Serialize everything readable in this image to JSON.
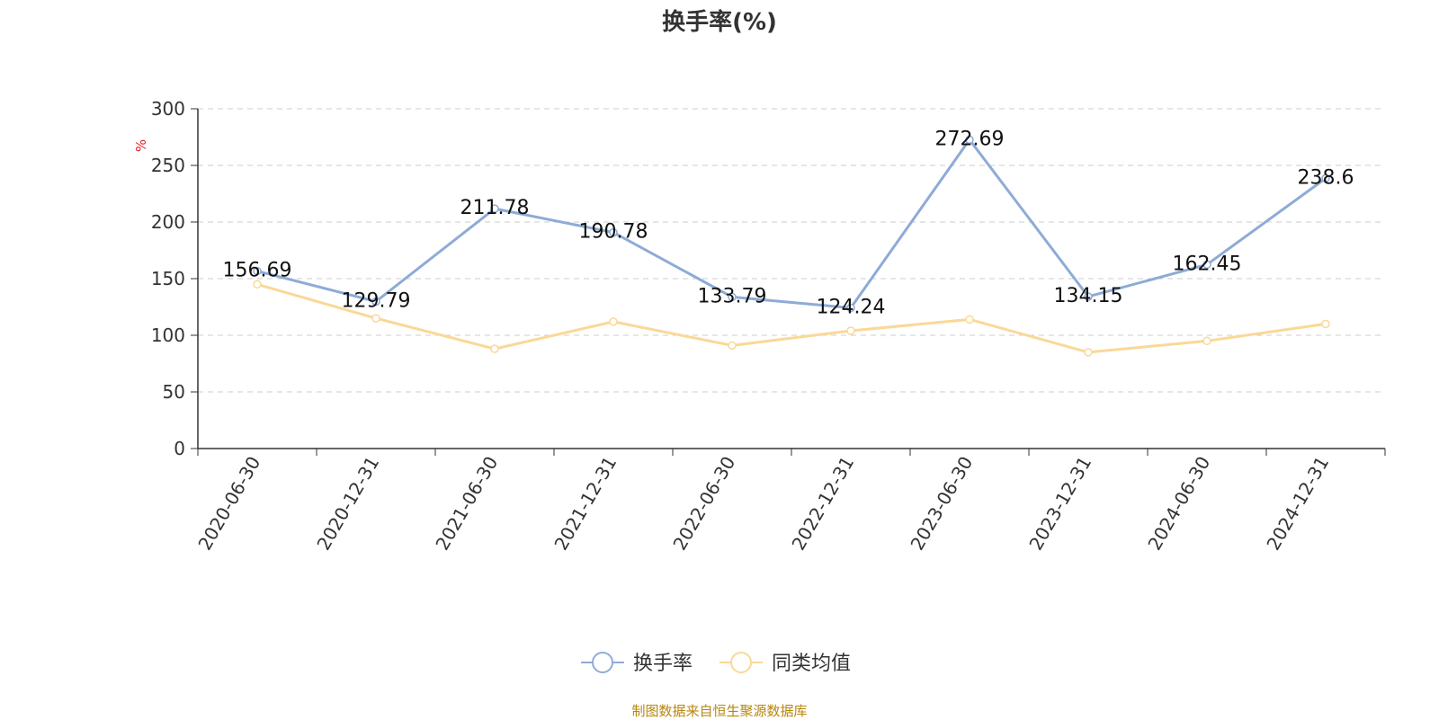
{
  "chart_data": {
    "type": "line",
    "title": "换手率(%)",
    "ylabel": "%",
    "xlabel": "",
    "ylim": [
      0,
      300
    ],
    "yticks": [
      0,
      50,
      100,
      150,
      200,
      250,
      300
    ],
    "categories": [
      "2020-06-30",
      "2020-12-31",
      "2021-06-30",
      "2021-12-31",
      "2022-06-30",
      "2022-12-31",
      "2023-06-30",
      "2023-12-31",
      "2024-06-30",
      "2024-12-31"
    ],
    "series": [
      {
        "name": "换手率",
        "color": "#8eabd6",
        "values": [
          156.69,
          129.79,
          211.78,
          190.78,
          133.79,
          124.24,
          272.69,
          134.15,
          162.45,
          238.6
        ],
        "labels": [
          "156.69",
          "129.79",
          "211.78",
          "190.78",
          "133.79",
          "124.24",
          "272.69",
          "134.15",
          "162.45",
          "238.6"
        ]
      },
      {
        "name": "同类均值",
        "color": "#fad897",
        "values": [
          145,
          115,
          88,
          112,
          91,
          104,
          114,
          85,
          95,
          110
        ]
      }
    ],
    "grid": true,
    "legend": "bottom-center",
    "source": "制图数据来自恒生聚源数据库"
  }
}
